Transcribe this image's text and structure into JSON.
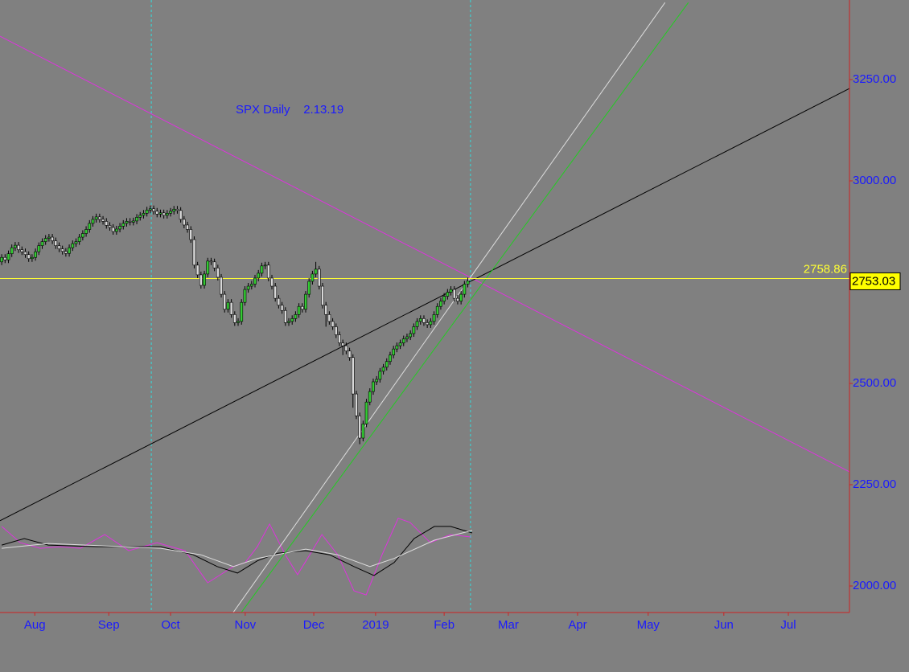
{
  "chart_data": {
    "type": "candlestick",
    "title": "SPX Daily    2.13.19",
    "up_color": "#33cc33",
    "down_color": "#d8d8d8",
    "open": [
      2800,
      2811,
      2805,
      2820,
      2835,
      2841,
      2830,
      2825,
      2818,
      2808,
      2811,
      2825,
      2840,
      2850,
      2858,
      2861,
      2852,
      2840,
      2832,
      2826,
      2821,
      2835,
      2845,
      2850,
      2861,
      2870,
      2880,
      2895,
      2905,
      2911,
      2905,
      2900,
      2890,
      2885,
      2875,
      2881,
      2888,
      2895,
      2900,
      2898,
      2901,
      2910,
      2915,
      2920,
      2928,
      2931,
      2925,
      2918,
      2921,
      2915,
      2920,
      2925,
      2930,
      2927,
      2905,
      2891,
      2880,
      2855,
      2792,
      2768,
      2742,
      2770,
      2802,
      2800,
      2785,
      2762,
      2720,
      2683,
      2700,
      2670,
      2650,
      2653,
      2700,
      2732,
      2740,
      2745,
      2760,
      2772,
      2790,
      2792,
      2760,
      2740,
      2710,
      2693,
      2680,
      2650,
      2653,
      2660,
      2670,
      2690,
      2683,
      2720,
      2752,
      2770,
      2782,
      2740,
      2693,
      2670,
      2653,
      2640,
      2620,
      2600,
      2593,
      2580,
      2564,
      2474,
      2420,
      2365,
      2400,
      2454,
      2480,
      2504,
      2510,
      2530,
      2540,
      2554,
      2570,
      2585,
      2593,
      2600,
      2610,
      2615,
      2623,
      2640,
      2653,
      2660,
      2650,
      2645,
      2653,
      2670,
      2690,
      2703,
      2715,
      2725,
      2732,
      2710,
      2703,
      2720,
      2745
    ],
    "high": [
      2819,
      2819,
      2828,
      2843,
      2849,
      2849,
      2838,
      2833,
      2826,
      2819,
      2833,
      2848,
      2858,
      2866,
      2869,
      2869,
      2860,
      2848,
      2840,
      2834,
      2843,
      2853,
      2858,
      2869,
      2878,
      2888,
      2903,
      2913,
      2919,
      2919,
      2913,
      2908,
      2898,
      2893,
      2889,
      2896,
      2903,
      2908,
      2908,
      2909,
      2918,
      2923,
      2928,
      2936,
      2939,
      2939,
      2933,
      2929,
      2929,
      2928,
      2933,
      2938,
      2938,
      2935,
      2913,
      2899,
      2888,
      2863,
      2800,
      2776,
      2778,
      2810,
      2810,
      2808,
      2793,
      2770,
      2728,
      2708,
      2708,
      2678,
      2661,
      2708,
      2740,
      2748,
      2753,
      2768,
      2780,
      2798,
      2800,
      2800,
      2768,
      2748,
      2718,
      2701,
      2688,
      2661,
      2668,
      2678,
      2698,
      2698,
      2728,
      2760,
      2778,
      2800,
      2790,
      2748,
      2701,
      2678,
      2661,
      2648,
      2628,
      2608,
      2601,
      2588,
      2572,
      2482,
      2428,
      2408,
      2462,
      2488,
      2512,
      2518,
      2538,
      2548,
      2562,
      2578,
      2593,
      2601,
      2608,
      2618,
      2623,
      2631,
      2648,
      2661,
      2668,
      2668,
      2658,
      2661,
      2678,
      2698,
      2711,
      2723,
      2733,
      2740,
      2740,
      2718,
      2728,
      2753,
      2761
    ],
    "low": [
      2792,
      2797,
      2797,
      2812,
      2827,
      2822,
      2817,
      2810,
      2800,
      2800,
      2803,
      2817,
      2832,
      2842,
      2850,
      2844,
      2832,
      2824,
      2818,
      2813,
      2813,
      2827,
      2837,
      2842,
      2853,
      2862,
      2872,
      2887,
      2897,
      2897,
      2892,
      2882,
      2877,
      2867,
      2867,
      2873,
      2880,
      2887,
      2890,
      2890,
      2893,
      2902,
      2907,
      2912,
      2920,
      2917,
      2910,
      2910,
      2907,
      2907,
      2912,
      2917,
      2919,
      2897,
      2883,
      2872,
      2847,
      2784,
      2760,
      2734,
      2734,
      2762,
      2792,
      2777,
      2754,
      2712,
      2675,
      2675,
      2662,
      2642,
      2642,
      2645,
      2692,
      2724,
      2732,
      2737,
      2752,
      2764,
      2782,
      2752,
      2732,
      2702,
      2685,
      2672,
      2642,
      2642,
      2645,
      2652,
      2662,
      2675,
      2675,
      2712,
      2744,
      2762,
      2732,
      2685,
      2640,
      2645,
      2632,
      2612,
      2592,
      2570,
      2572,
      2556,
      2440,
      2412,
      2350,
      2357,
      2392,
      2446,
      2472,
      2496,
      2502,
      2522,
      2532,
      2546,
      2562,
      2577,
      2585,
      2592,
      2602,
      2607,
      2615,
      2632,
      2645,
      2642,
      2637,
      2637,
      2645,
      2662,
      2682,
      2695,
      2707,
      2717,
      2702,
      2695,
      2695,
      2712,
      2737
    ],
    "close": [
      2811,
      2805,
      2820,
      2835,
      2841,
      2830,
      2825,
      2818,
      2808,
      2811,
      2825,
      2840,
      2850,
      2858,
      2861,
      2852,
      2840,
      2832,
      2826,
      2821,
      2835,
      2845,
      2850,
      2861,
      2870,
      2880,
      2895,
      2905,
      2911,
      2905,
      2900,
      2890,
      2885,
      2875,
      2881,
      2888,
      2895,
      2900,
      2898,
      2901,
      2910,
      2915,
      2920,
      2928,
      2931,
      2925,
      2918,
      2921,
      2915,
      2920,
      2925,
      2930,
      2927,
      2905,
      2891,
      2880,
      2855,
      2792,
      2768,
      2742,
      2770,
      2802,
      2800,
      2785,
      2762,
      2720,
      2683,
      2700,
      2670,
      2650,
      2653,
      2700,
      2732,
      2740,
      2745,
      2760,
      2772,
      2790,
      2792,
      2760,
      2740,
      2710,
      2693,
      2680,
      2650,
      2653,
      2660,
      2670,
      2690,
      2683,
      2720,
      2752,
      2770,
      2782,
      2740,
      2693,
      2670,
      2653,
      2640,
      2620,
      2600,
      2593,
      2580,
      2564,
      2474,
      2420,
      2365,
      2400,
      2454,
      2480,
      2504,
      2510,
      2530,
      2540,
      2554,
      2570,
      2585,
      2593,
      2600,
      2610,
      2615,
      2623,
      2640,
      2653,
      2660,
      2650,
      2645,
      2653,
      2670,
      2690,
      2703,
      2715,
      2725,
      2732,
      2710,
      2703,
      2720,
      2745,
      2753
    ],
    "xlim": [
      -0.5,
      251
    ],
    "xticks": [
      {
        "value": 9.8,
        "label": "Aug"
      },
      {
        "value": 31.7,
        "label": "Sep"
      },
      {
        "value": 50,
        "label": "Oct"
      },
      {
        "value": 72.1,
        "label": "Nov"
      },
      {
        "value": 92.4,
        "label": "Dec"
      },
      {
        "value": 110.7,
        "label": "2019"
      },
      {
        "value": 131,
        "label": "Feb"
      },
      {
        "value": 150,
        "label": "Mar"
      },
      {
        "value": 170.5,
        "label": "Apr"
      },
      {
        "value": 191.4,
        "label": "May"
      },
      {
        "value": 213.8,
        "label": "Jun"
      },
      {
        "value": 232.9,
        "label": "Jul"
      }
    ],
    "ylim": [
      1934.5,
      3446.4
    ],
    "yticks": [
      {
        "value": 2000,
        "label": "2000.00"
      },
      {
        "value": 2250,
        "label": "2250.00"
      },
      {
        "value": 2500,
        "label": "2500.00"
      },
      {
        "value": 2750,
        "label": "2750.00"
      },
      {
        "value": 3000,
        "label": "3000.00"
      },
      {
        "value": 3250,
        "label": "3250.00"
      }
    ],
    "hline": 2758.86,
    "hline_color": "#ffff33",
    "last_price": 2753.03,
    "vlines": [
      44.3,
      138.8
    ],
    "vline_color": "#33dddd",
    "trend_lines": [
      {
        "color": "#dd33dd",
        "x": [
          -0.5,
          251
        ],
        "y": [
          3357,
          2282
        ]
      },
      {
        "color": "#000000",
        "x": [
          -0.5,
          251
        ],
        "y": [
          2161,
          3228
        ]
      },
      {
        "color": "#dddddd",
        "x": [
          68.6,
          196.4
        ],
        "y": [
          1935,
          3440
        ]
      },
      {
        "color": "#22cc22",
        "x": [
          71,
          203.3
        ],
        "y": [
          1935,
          3440
        ]
      }
    ],
    "indicators": [
      {
        "color": "#dd33dd",
        "x": [
          0,
          5.5,
          11.4,
          17.4,
          23.3,
          30.5,
          37.6,
          46,
          54.3,
          61,
          68.6,
          72.1,
          75.7,
          79.3,
          84,
          87.6,
          91.2,
          94.8,
          99.5,
          104.3,
          107.9,
          112.6,
          117.4,
          120.9,
          126.9,
          132.9,
          138.8
        ],
        "values": [
          2147,
          2107,
          2093,
          2097,
          2093,
          2127,
          2087,
          2107,
          2087,
          2008,
          2048,
          2058,
          2097,
          2153,
          2077,
          2028,
          2077,
          2127,
          2077,
          1988,
          1978,
          2077,
          2167,
          2157,
          2107,
          2127,
          2121
        ]
      },
      {
        "color": "#000000",
        "x": [
          0,
          6.7,
          13.8,
          28.1,
          47.1,
          56.7,
          63.8,
          69.8,
          75.7,
          81.7,
          90,
          97.1,
          104.3,
          110.2,
          116.2,
          122.1,
          128.1,
          132.9,
          139.3
        ],
        "values": [
          2101,
          2117,
          2101,
          2097,
          2097,
          2077,
          2048,
          2032,
          2062,
          2081,
          2087,
          2077,
          2048,
          2026,
          2058,
          2117,
          2147,
          2147,
          2131
        ]
      },
      {
        "color": "#dddddd",
        "x": [
          0,
          13.8,
          47.1,
          59,
          68.6,
          75.7,
          90,
          99.5,
          109,
          116.2,
          128.1,
          139.3
        ],
        "values": [
          2093,
          2105,
          2093,
          2077,
          2048,
          2068,
          2091,
          2077,
          2048,
          2068,
          2113,
          2137
        ]
      }
    ]
  }
}
